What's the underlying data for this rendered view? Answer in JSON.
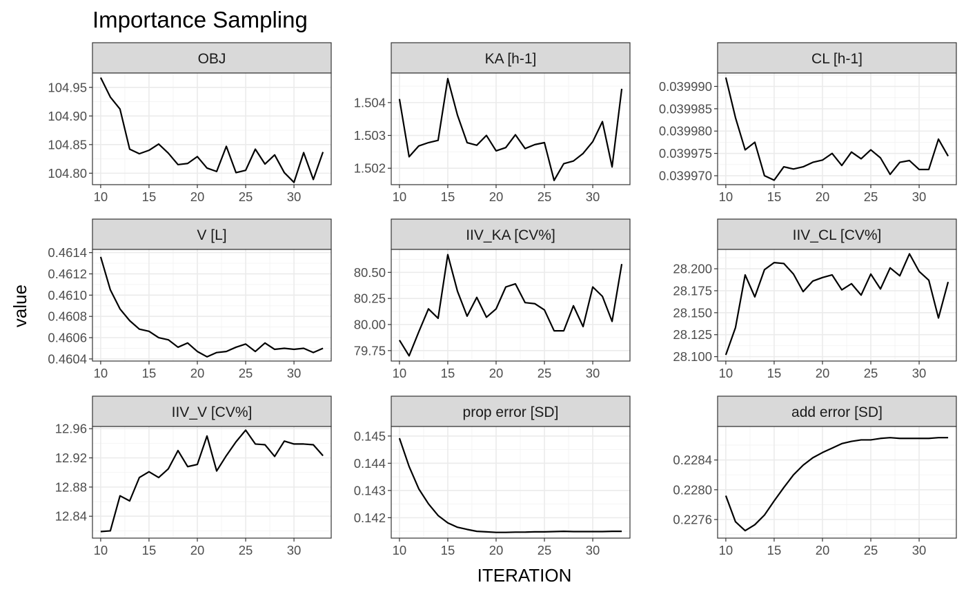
{
  "chart_data": {
    "type": "line",
    "title": "Importance Sampling",
    "xlabel": "ITERATION",
    "ylabel": "value",
    "grid": true,
    "legend": "none",
    "x": [
      10,
      11,
      12,
      13,
      14,
      15,
      16,
      17,
      18,
      19,
      20,
      21,
      22,
      23,
      24,
      25,
      26,
      27,
      28,
      29,
      30,
      31,
      32,
      33
    ],
    "xticks": [
      10,
      15,
      20,
      25,
      30
    ],
    "xlim": [
      9.15,
      33.85
    ],
    "panels": [
      {
        "label": "OBJ",
        "ylim": [
          104.78,
          104.975
        ],
        "yticks": [
          104.8,
          104.85,
          104.9,
          104.95
        ],
        "ytick_labels": [
          "104.80",
          "104.85",
          "104.90",
          "104.95"
        ],
        "values": [
          104.967,
          104.933,
          104.912,
          104.842,
          104.834,
          104.84,
          104.851,
          104.835,
          104.815,
          104.817,
          104.829,
          104.809,
          104.803,
          104.847,
          104.801,
          104.805,
          104.842,
          104.816,
          104.832,
          104.801,
          104.784,
          104.836,
          104.789,
          104.837
        ]
      },
      {
        "label": "KA [h-1]",
        "ylim": [
          1.5015,
          1.5049
        ],
        "yticks": [
          1.502,
          1.503,
          1.504
        ],
        "ytick_labels": [
          "1.502",
          "1.503",
          "1.504"
        ],
        "values": [
          1.50411,
          1.50235,
          1.50268,
          1.50278,
          1.50285,
          1.50473,
          1.50362,
          1.50278,
          1.5027,
          1.503,
          1.50253,
          1.50263,
          1.50302,
          1.5026,
          1.50272,
          1.50278,
          1.50163,
          1.50214,
          1.50222,
          1.50245,
          1.50281,
          1.50342,
          1.50204,
          1.50442
        ]
      },
      {
        "label": "CL [h-1]",
        "ylim": [
          0.039968,
          0.039993
        ],
        "yticks": [
          0.03997,
          0.039975,
          0.03998,
          0.039985,
          0.03999
        ],
        "ytick_labels": [
          "0.039970",
          "0.039975",
          "0.039980",
          "0.039985",
          "0.039990"
        ],
        "values": [
          0.039992,
          0.039983,
          0.0399758,
          0.0399775,
          0.03997,
          0.039969,
          0.039972,
          0.0399715,
          0.039972,
          0.039973,
          0.0399735,
          0.039975,
          0.0399723,
          0.0399753,
          0.0399738,
          0.0399758,
          0.039974,
          0.0399703,
          0.039973,
          0.0399734,
          0.0399714,
          0.0399714,
          0.0399782,
          0.0399744
        ]
      },
      {
        "label": "V [L]",
        "ylim": [
          0.46038,
          0.46143
        ],
        "yticks": [
          0.4604,
          0.4606,
          0.4608,
          0.461,
          0.4612,
          0.4614
        ],
        "ytick_labels": [
          "0.4604",
          "0.4606",
          "0.4608",
          "0.4610",
          "0.4612",
          "0.4614"
        ],
        "values": [
          0.46136,
          0.46105,
          0.46087,
          0.46076,
          0.46068,
          0.46066,
          0.4606,
          0.46058,
          0.46051,
          0.46055,
          0.46047,
          0.46042,
          0.46046,
          0.46047,
          0.46051,
          0.46054,
          0.46047,
          0.46055,
          0.46049,
          0.4605,
          0.46049,
          0.4605,
          0.46046,
          0.4605
        ]
      },
      {
        "label": "IIV_KA [CV%]",
        "ylim": [
          79.65,
          80.72
        ],
        "yticks": [
          79.75,
          80.0,
          80.25,
          80.5
        ],
        "ytick_labels": [
          "79.75",
          "80.00",
          "80.25",
          "80.50"
        ],
        "values": [
          79.85,
          79.7,
          79.93,
          80.15,
          80.06,
          80.67,
          80.32,
          80.08,
          80.26,
          80.07,
          80.15,
          80.36,
          80.39,
          80.21,
          80.2,
          80.14,
          79.94,
          79.94,
          80.18,
          79.98,
          80.36,
          80.27,
          80.03,
          80.58
        ]
      },
      {
        "label": "IIV_CL [CV%]",
        "ylim": [
          28.095,
          28.222
        ],
        "yticks": [
          28.1,
          28.125,
          28.15,
          28.175,
          28.2
        ],
        "ytick_labels": [
          "28.100",
          "28.125",
          "28.150",
          "28.175",
          "28.200"
        ],
        "values": [
          28.102,
          28.133,
          28.193,
          28.168,
          28.199,
          28.207,
          28.206,
          28.194,
          28.174,
          28.186,
          28.19,
          28.193,
          28.176,
          28.183,
          28.17,
          28.194,
          28.177,
          28.201,
          28.192,
          28.217,
          28.197,
          28.187,
          28.144,
          28.185
        ]
      },
      {
        "label": "IIV_V [CV%]",
        "ylim": [
          12.81,
          12.963
        ],
        "yticks": [
          12.84,
          12.88,
          12.92,
          12.96
        ],
        "ytick_labels": [
          "12.84",
          "12.88",
          "12.92",
          "12.96"
        ],
        "values": [
          12.819,
          12.82,
          12.868,
          12.861,
          12.893,
          12.901,
          12.893,
          12.905,
          12.93,
          12.908,
          12.911,
          12.95,
          12.902,
          12.923,
          12.942,
          12.958,
          12.939,
          12.938,
          12.922,
          12.943,
          12.939,
          12.939,
          12.938,
          12.923
        ]
      },
      {
        "label": "prop error [SD]",
        "ylim": [
          0.14125,
          0.14535
        ],
        "yticks": [
          0.142,
          0.143,
          0.144,
          0.145
        ],
        "ytick_labels": [
          "0.142",
          "0.143",
          "0.144",
          "0.145"
        ],
        "values": [
          0.14492,
          0.14388,
          0.14306,
          0.14251,
          0.14208,
          0.14181,
          0.14165,
          0.14157,
          0.1415,
          0.14148,
          0.14146,
          0.14146,
          0.14147,
          0.14147,
          0.14148,
          0.14148,
          0.14149,
          0.1415,
          0.14149,
          0.14149,
          0.14149,
          0.14149,
          0.1415,
          0.1415
        ]
      },
      {
        "label": "add error [SD]",
        "ylim": [
          0.22735,
          0.22885
        ],
        "yticks": [
          0.2276,
          0.228,
          0.2284
        ],
        "ytick_labels": [
          "0.2276",
          "0.2280",
          "0.2284"
        ],
        "values": [
          0.22792,
          0.22757,
          0.22745,
          0.22753,
          0.22766,
          0.22785,
          0.22803,
          0.2282,
          0.22833,
          0.22843,
          0.2285,
          0.22856,
          0.22862,
          0.22865,
          0.22867,
          0.22867,
          0.22869,
          0.2287,
          0.22869,
          0.22869,
          0.22869,
          0.22869,
          0.2287,
          0.2287
        ]
      }
    ]
  }
}
